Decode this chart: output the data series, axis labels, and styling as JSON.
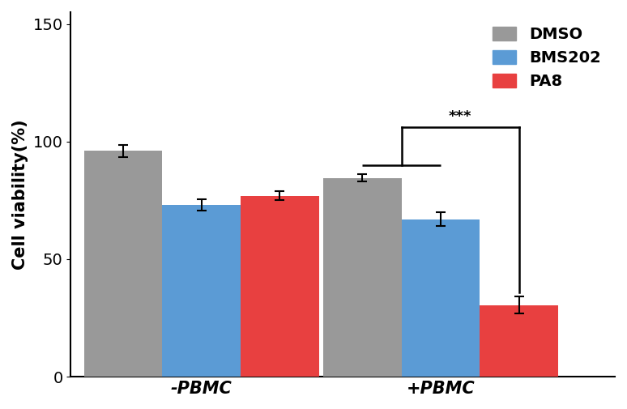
{
  "groups": [
    "-PBMC",
    "+PBMC"
  ],
  "conditions": [
    "DMSO",
    "BMS202",
    "PA8"
  ],
  "bar_colors": [
    "#999999",
    "#5B9BD5",
    "#E84040"
  ],
  "values": [
    [
      96.0,
      73.0,
      77.0
    ],
    [
      84.5,
      67.0,
      30.5
    ]
  ],
  "errors": [
    [
      2.5,
      2.5,
      2.0
    ],
    [
      1.5,
      3.0,
      3.5
    ]
  ],
  "ylabel": "Cell viability(%)",
  "ylim": [
    0,
    155
  ],
  "yticks": [
    0,
    50,
    100,
    150
  ],
  "bar_width": 0.18,
  "significance_label": "***",
  "legend_labels": [
    "DMSO",
    "BMS202",
    "PA8"
  ],
  "xlabel_fontsize": 15,
  "ylabel_fontsize": 15,
  "tick_fontsize": 14,
  "legend_fontsize": 14,
  "group_centers": [
    0.3,
    0.85
  ],
  "xlim": [
    0.0,
    1.25
  ]
}
